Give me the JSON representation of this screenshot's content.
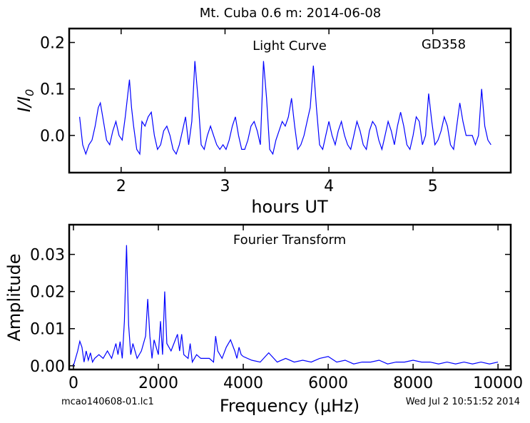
{
  "figure": {
    "title": "Mt. Cuba 0.6 m:  2014-06-08",
    "footer_left": "mcao140608-01.lc1",
    "footer_right": "Wed Jul  2 10:51:52 2014"
  },
  "chart_data": [
    {
      "type": "line",
      "annotation": "Light Curve",
      "star": "GD358",
      "xlabel": "hours UT",
      "ylabel": "I/I0",
      "xlim": [
        1.5,
        5.75
      ],
      "ylim": [
        -0.08,
        0.23
      ],
      "xticks": [
        2,
        3,
        4,
        5
      ],
      "yticks": [
        0.0,
        0.1,
        0.2
      ],
      "ytick_labels": [
        "0.0",
        "0.1",
        "0.2"
      ],
      "line_color": "#0000ff",
      "x": [
        1.6,
        1.63,
        1.66,
        1.69,
        1.72,
        1.75,
        1.78,
        1.8,
        1.83,
        1.86,
        1.89,
        1.92,
        1.95,
        1.98,
        2.01,
        2.04,
        2.07,
        2.08,
        2.1,
        2.12,
        2.15,
        2.18,
        2.2,
        2.23,
        2.26,
        2.29,
        2.32,
        2.35,
        2.38,
        2.41,
        2.44,
        2.47,
        2.5,
        2.53,
        2.56,
        2.59,
        2.62,
        2.65,
        2.68,
        2.71,
        2.74,
        2.77,
        2.8,
        2.83,
        2.86,
        2.89,
        2.92,
        2.95,
        2.98,
        3.01,
        3.04,
        3.07,
        3.1,
        3.13,
        3.16,
        3.19,
        3.22,
        3.25,
        3.28,
        3.31,
        3.34,
        3.37,
        3.4,
        3.43,
        3.46,
        3.49,
        3.52,
        3.55,
        3.58,
        3.61,
        3.64,
        3.67,
        3.7,
        3.73,
        3.76,
        3.79,
        3.82,
        3.85,
        3.88,
        3.91,
        3.94,
        3.97,
        4.0,
        4.03,
        4.06,
        4.09,
        4.12,
        4.15,
        4.18,
        4.21,
        4.24,
        4.27,
        4.3,
        4.33,
        4.36,
        4.39,
        4.42,
        4.45,
        4.48,
        4.51,
        4.54,
        4.57,
        4.6,
        4.63,
        4.66,
        4.69,
        4.72,
        4.75,
        4.78,
        4.81,
        4.84,
        4.87,
        4.9,
        4.93,
        4.96,
        4.99,
        5.02,
        5.05,
        5.08,
        5.11,
        5.14,
        5.17,
        5.2,
        5.23,
        5.26,
        5.29,
        5.32,
        5.35,
        5.38,
        5.41,
        5.44,
        5.47,
        5.5,
        5.53,
        5.56
      ],
      "y": [
        0.04,
        -0.02,
        -0.04,
        -0.02,
        -0.01,
        0.02,
        0.06,
        0.07,
        0.03,
        -0.01,
        -0.02,
        0.01,
        0.03,
        0.0,
        -0.01,
        0.04,
        0.1,
        0.12,
        0.06,
        0.02,
        -0.03,
        -0.04,
        0.03,
        0.02,
        0.04,
        0.05,
        0.0,
        -0.03,
        -0.02,
        0.01,
        0.02,
        0.0,
        -0.03,
        -0.04,
        -0.02,
        0.01,
        0.04,
        -0.02,
        0.03,
        0.16,
        0.08,
        -0.02,
        -0.03,
        0.0,
        0.02,
        0.0,
        -0.02,
        -0.03,
        -0.02,
        -0.03,
        -0.01,
        0.02,
        0.04,
        0.0,
        -0.03,
        -0.03,
        -0.01,
        0.02,
        0.03,
        0.01,
        -0.02,
        0.16,
        0.08,
        -0.03,
        -0.04,
        -0.01,
        0.01,
        0.03,
        0.02,
        0.04,
        0.08,
        0.02,
        -0.03,
        -0.02,
        0.0,
        0.03,
        0.06,
        0.15,
        0.06,
        -0.02,
        -0.03,
        0.0,
        0.03,
        0.0,
        -0.02,
        0.01,
        0.03,
        0.0,
        -0.02,
        -0.03,
        0.0,
        0.03,
        0.01,
        -0.02,
        -0.03,
        0.01,
        0.03,
        0.02,
        -0.01,
        -0.03,
        0.0,
        0.03,
        0.01,
        -0.02,
        0.02,
        0.05,
        0.02,
        -0.02,
        -0.03,
        0.0,
        0.04,
        0.03,
        -0.02,
        0.0,
        0.09,
        0.03,
        -0.02,
        -0.01,
        0.01,
        0.04,
        0.02,
        -0.02,
        -0.03,
        0.02,
        0.07,
        0.03,
        0.0,
        0.0,
        0.0,
        -0.02,
        0.0,
        0.1,
        0.02,
        -0.01,
        -0.02
      ]
    },
    {
      "type": "line",
      "annotation": "Fourier Transform",
      "xlabel": "Frequency (μHz)",
      "ylabel": "Amplitude",
      "xlim": [
        -100,
        10300
      ],
      "ylim": [
        -0.001,
        0.038
      ],
      "xticks": [
        0,
        2000,
        4000,
        6000,
        8000,
        10000
      ],
      "yticks": [
        0.0,
        0.01,
        0.02,
        0.03
      ],
      "ytick_labels": [
        "0.00",
        "0.01",
        "0.02",
        "0.03"
      ],
      "line_color": "#0000ff",
      "x": [
        0,
        100,
        150,
        200,
        250,
        300,
        350,
        400,
        450,
        500,
        600,
        700,
        800,
        900,
        1000,
        1050,
        1100,
        1150,
        1200,
        1250,
        1300,
        1350,
        1400,
        1500,
        1600,
        1700,
        1750,
        1800,
        1850,
        1900,
        2000,
        2050,
        2100,
        2150,
        2200,
        2300,
        2400,
        2450,
        2500,
        2550,
        2600,
        2700,
        2750,
        2800,
        2900,
        3000,
        3200,
        3300,
        3350,
        3400,
        3500,
        3600,
        3700,
        3800,
        3850,
        3900,
        3950,
        4000,
        4200,
        4400,
        4600,
        4800,
        5000,
        5200,
        5400,
        5600,
        5800,
        6000,
        6200,
        6400,
        6600,
        6800,
        7000,
        7200,
        7400,
        7600,
        7800,
        8000,
        8200,
        8400,
        8600,
        8800,
        9000,
        9200,
        9400,
        9600,
        9800,
        10000
      ],
      "y": [
        0.0,
        0.004,
        0.0066,
        0.005,
        0.001,
        0.004,
        0.0015,
        0.0035,
        0.001,
        0.002,
        0.003,
        0.002,
        0.004,
        0.002,
        0.006,
        0.003,
        0.0065,
        0.002,
        0.012,
        0.0325,
        0.011,
        0.003,
        0.006,
        0.002,
        0.004,
        0.008,
        0.018,
        0.008,
        0.002,
        0.007,
        0.003,
        0.012,
        0.003,
        0.02,
        0.006,
        0.004,
        0.007,
        0.0085,
        0.004,
        0.0085,
        0.003,
        0.002,
        0.006,
        0.001,
        0.003,
        0.002,
        0.002,
        0.001,
        0.008,
        0.004,
        0.002,
        0.005,
        0.007,
        0.004,
        0.002,
        0.005,
        0.003,
        0.0025,
        0.0015,
        0.001,
        0.0035,
        0.001,
        0.002,
        0.001,
        0.0015,
        0.001,
        0.002,
        0.0025,
        0.001,
        0.0015,
        0.0005,
        0.001,
        0.001,
        0.0015,
        0.0005,
        0.001,
        0.001,
        0.0015,
        0.001,
        0.001,
        0.0005,
        0.001,
        0.0005,
        0.001,
        0.0005,
        0.001,
        0.0005,
        0.001
      ]
    }
  ]
}
